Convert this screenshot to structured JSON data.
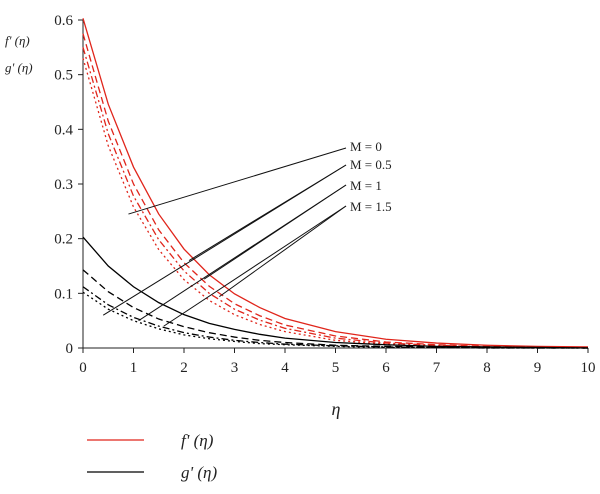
{
  "chart_data": {
    "type": "line",
    "xlabel": "η",
    "ylabel": [
      "f' (η)",
      "g' (η)"
    ],
    "xlim": [
      0,
      10
    ],
    "ylim": [
      0,
      0.6
    ],
    "x_ticks": [
      "0",
      "1",
      "2",
      "3",
      "4",
      "5",
      "6",
      "7",
      "8",
      "9",
      "10"
    ],
    "y_ticks": [
      "0",
      "0.1",
      "0.2",
      "0.3",
      "0.4",
      "0.5",
      "0.6"
    ],
    "grid": false,
    "legend_position": "bottom-left",
    "legend": [
      {
        "label": "f' (η)",
        "color": "#e0251b"
      },
      {
        "label": "g' (η)",
        "color": "#000000"
      }
    ],
    "annotations": [
      "M = 0",
      "M = 0.5",
      "M = 1",
      "M = 1.5"
    ],
    "series": [
      {
        "group": "f",
        "M": 0,
        "color": "#e0251b",
        "dash": "solid",
        "x": [
          0,
          0.5,
          1,
          1.5,
          2,
          2.5,
          3,
          3.5,
          4,
          5,
          6,
          7,
          8,
          9,
          10
        ],
        "y": [
          0.603,
          0.446,
          0.331,
          0.245,
          0.181,
          0.134,
          0.099,
          0.074,
          0.054,
          0.03,
          0.016,
          0.009,
          0.005,
          0.003,
          0.002
        ]
      },
      {
        "group": "f",
        "M": 0.5,
        "color": "#e0251b",
        "dash": "dashed",
        "x": [
          0,
          0.5,
          1,
          1.5,
          2,
          2.5,
          3,
          3.5,
          4,
          5,
          6,
          7,
          8,
          9,
          10
        ],
        "y": [
          0.575,
          0.415,
          0.3,
          0.216,
          0.156,
          0.113,
          0.081,
          0.059,
          0.042,
          0.022,
          0.011,
          0.006,
          0.003,
          0.002,
          0.001
        ]
      },
      {
        "group": "f",
        "M": 1,
        "color": "#e0251b",
        "dash": "dashdot",
        "x": [
          0,
          0.5,
          1,
          1.5,
          2,
          2.5,
          3,
          3.5,
          4,
          5,
          6,
          7,
          8,
          9,
          10
        ],
        "y": [
          0.55,
          0.392,
          0.278,
          0.198,
          0.141,
          0.1,
          0.071,
          0.051,
          0.036,
          0.018,
          0.009,
          0.005,
          0.002,
          0.001,
          0.001
        ]
      },
      {
        "group": "f",
        "M": 1.5,
        "color": "#e0251b",
        "dash": "dotted",
        "x": [
          0,
          0.5,
          1,
          1.5,
          2,
          2.5,
          3,
          3.5,
          4,
          5,
          6,
          7,
          8,
          9,
          10
        ],
        "y": [
          0.53,
          0.37,
          0.258,
          0.18,
          0.125,
          0.087,
          0.061,
          0.043,
          0.03,
          0.014,
          0.007,
          0.003,
          0.002,
          0.001,
          0.0
        ]
      },
      {
        "group": "g",
        "M": 0,
        "color": "#000000",
        "dash": "solid",
        "x": [
          0,
          0.5,
          1,
          1.5,
          2,
          2.5,
          3,
          3.5,
          4,
          5,
          6,
          7,
          8,
          9,
          10
        ],
        "y": [
          0.203,
          0.15,
          0.112,
          0.083,
          0.061,
          0.045,
          0.034,
          0.025,
          0.018,
          0.01,
          0.006,
          0.003,
          0.002,
          0.001,
          0.0
        ]
      },
      {
        "group": "g",
        "M": 0.5,
        "color": "#000000",
        "dash": "dashed",
        "x": [
          0,
          0.5,
          1,
          1.5,
          2,
          2.5,
          3,
          3.5,
          4,
          5,
          6,
          7,
          8,
          9,
          10
        ],
        "y": [
          0.143,
          0.103,
          0.074,
          0.053,
          0.039,
          0.028,
          0.02,
          0.014,
          0.01,
          0.005,
          0.003,
          0.002,
          0.001,
          0.0,
          0.0
        ]
      },
      {
        "group": "g",
        "M": 1,
        "color": "#000000",
        "dash": "dashdot",
        "x": [
          0,
          0.5,
          1,
          1.5,
          2,
          2.5,
          3,
          3.5,
          4,
          5,
          6,
          7,
          8,
          9,
          10
        ],
        "y": [
          0.112,
          0.079,
          0.056,
          0.04,
          0.028,
          0.02,
          0.014,
          0.01,
          0.007,
          0.004,
          0.002,
          0.001,
          0.0,
          0.0,
          0.0
        ]
      },
      {
        "group": "g",
        "M": 1.5,
        "color": "#000000",
        "dash": "dotted",
        "x": [
          0,
          0.5,
          1,
          1.5,
          2,
          2.5,
          3,
          3.5,
          4,
          5,
          6,
          7,
          8,
          9,
          10
        ],
        "y": [
          0.102,
          0.071,
          0.05,
          0.035,
          0.024,
          0.017,
          0.012,
          0.008,
          0.006,
          0.003,
          0.001,
          0.001,
          0.0,
          0.0,
          0.0
        ]
      }
    ]
  }
}
